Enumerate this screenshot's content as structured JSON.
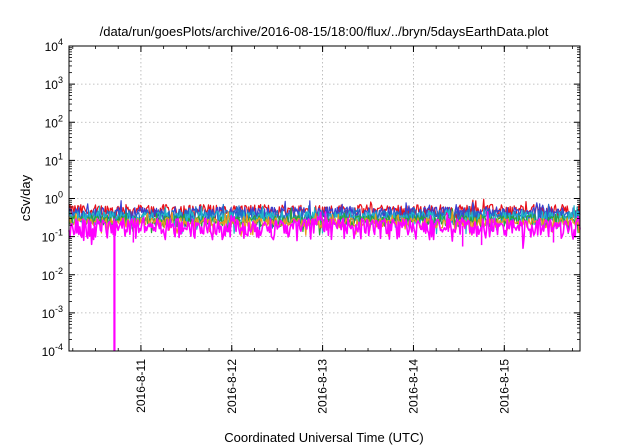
{
  "chart_data": {
    "type": "line",
    "title": "/data/run/goesPlots/archive/2016-08-15/18:00/flux/../bryn/5daysEarthData.plot",
    "xlabel": "Coordinated Universal Time (UTC)",
    "ylabel": "cSv/day",
    "y_scale": "log",
    "ylim": [
      0.0001,
      10000
    ],
    "xlim": [
      "2016-08-10 05:00",
      "2016-08-15 20:00"
    ],
    "y_ticks": [
      {
        "base": "10",
        "exp": "-4",
        "value": 0.0001
      },
      {
        "base": "10",
        "exp": "-3",
        "value": 0.001
      },
      {
        "base": "10",
        "exp": "-2",
        "value": 0.01
      },
      {
        "base": "10",
        "exp": "-1",
        "value": 0.1
      },
      {
        "base": "10",
        "exp": "0",
        "value": 1
      },
      {
        "base": "10",
        "exp": "1",
        "value": 10
      },
      {
        "base": "10",
        "exp": "2",
        "value": 100
      },
      {
        "base": "10",
        "exp": "3",
        "value": 1000
      },
      {
        "base": "10",
        "exp": "4",
        "value": 10000
      }
    ],
    "x_ticks": [
      {
        "label": "2016-8-11",
        "value": "2016-08-11 00:00"
      },
      {
        "label": "2016-8-12",
        "value": "2016-08-12 00:00"
      },
      {
        "label": "2016-8-13",
        "value": "2016-08-13 00:00"
      },
      {
        "label": "2016-8-14",
        "value": "2016-08-14 00:00"
      },
      {
        "label": "2016-8-15",
        "value": "2016-08-15 00:00"
      }
    ],
    "grid": true,
    "legend": "none",
    "series": [
      {
        "color": "#e8101a",
        "baseline": 0.5,
        "spread": 0.22
      },
      {
        "color": "#3a3fd0",
        "baseline": 0.42,
        "spread": 0.2
      },
      {
        "color": "#1f6fc8",
        "baseline": 0.36,
        "spread": 0.16
      },
      {
        "color": "#20b8c8",
        "baseline": 0.32,
        "spread": 0.14
      },
      {
        "color": "#2aa040",
        "baseline": 0.27,
        "spread": 0.1
      },
      {
        "color": "#e89a20",
        "baseline": 0.24,
        "spread": 0.08
      },
      {
        "color": "#ff00ff",
        "baseline": 0.19,
        "spread": 0.12
      }
    ],
    "annotations": [
      {
        "text": "magenta series drops below 1e-4",
        "x": "2016-08-10 17:00"
      }
    ]
  }
}
